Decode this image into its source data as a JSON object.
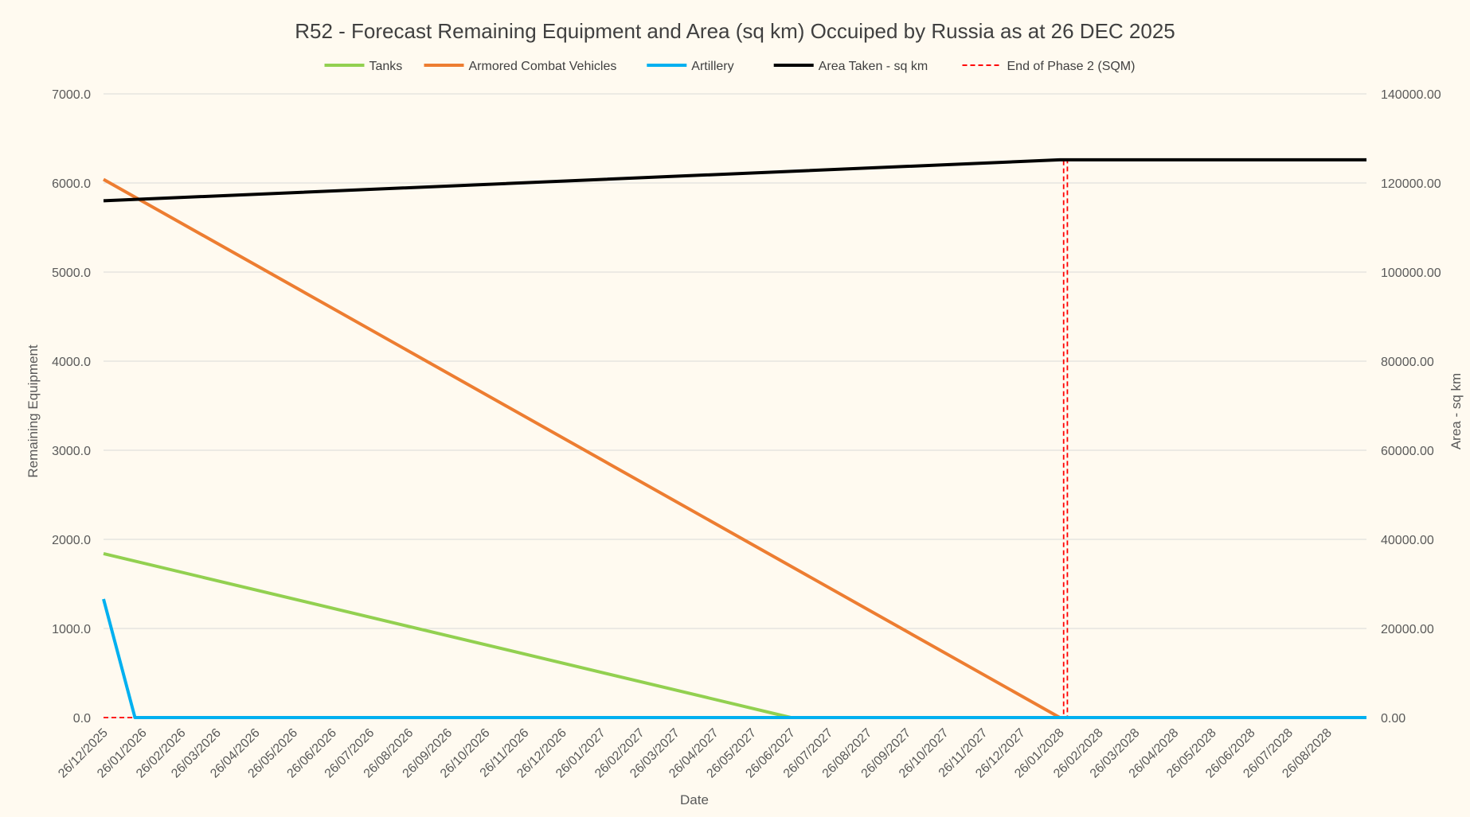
{
  "chart_data": {
    "type": "line",
    "title": "R52 - Forecast Remaining Equipment and Area (sq km) Occuiped by Russia as at 26 DEC 2025",
    "xlabel": "Date",
    "ylabel": "Remaining Equipment",
    "y2label": "Area - sq km",
    "ylim": [
      0,
      7000
    ],
    "y2lim": [
      0,
      140000
    ],
    "yticks": [
      "0.0",
      "1000.0",
      "2000.0",
      "3000.0",
      "4000.0",
      "5000.0",
      "6000.0",
      "7000.0"
    ],
    "y2ticks": [
      "0.00",
      "20000.00",
      "40000.00",
      "60000.00",
      "80000.00",
      "100000.00",
      "120000.00",
      "140000.00"
    ],
    "categories": [
      "26/12/2025",
      "26/01/2026",
      "26/02/2026",
      "26/03/2026",
      "26/04/2026",
      "26/05/2026",
      "26/06/2026",
      "26/07/2026",
      "26/08/2026",
      "26/09/2026",
      "26/10/2026",
      "26/11/2026",
      "26/12/2026",
      "26/01/2027",
      "26/02/2027",
      "26/03/2027",
      "26/04/2027",
      "26/05/2027",
      "26/06/2027",
      "26/07/2027",
      "26/08/2027",
      "26/09/2027",
      "26/10/2027",
      "26/11/2027",
      "26/12/2027",
      "26/01/2028",
      "26/02/2028",
      "26/03/2028",
      "26/04/2028",
      "26/05/2028",
      "26/06/2028",
      "26/07/2028",
      "26/08/2028"
    ],
    "x_end": "26/09/2028",
    "legend_position": "top",
    "grid": true,
    "series": [
      {
        "name": "Tanks",
        "axis": "left",
        "color": "#92d050",
        "dash": false,
        "points": [
          [
            "26/12/2025",
            1840
          ],
          [
            "26/06/2027",
            0
          ],
          [
            "26/09/2028",
            0
          ]
        ]
      },
      {
        "name": "Armored Combat Vehicles",
        "axis": "left",
        "color": "#ed7d31",
        "dash": false,
        "points": [
          [
            "26/12/2025",
            6040
          ],
          [
            "26/01/2028",
            0
          ],
          [
            "26/09/2028",
            0
          ]
        ]
      },
      {
        "name": "Artillery",
        "axis": "left",
        "color": "#00b0f0",
        "dash": false,
        "points": [
          [
            "26/12/2025",
            1330
          ],
          [
            "20/01/2026",
            0
          ],
          [
            "26/09/2028",
            0
          ]
        ]
      },
      {
        "name": "Area Taken - sq km",
        "axis": "right",
        "color": "#000000",
        "dash": false,
        "points": [
          [
            "26/12/2025",
            116000
          ],
          [
            "26/01/2028",
            125200
          ],
          [
            "26/09/2028",
            125200
          ]
        ]
      },
      {
        "name": "End of Phase 2 (SQM)",
        "axis": "right",
        "color": "#ff0000",
        "dash": true,
        "points": [
          [
            "26/12/2025",
            0
          ],
          [
            "29/01/2028",
            0
          ],
          [
            "29/01/2028",
            125200
          ],
          [
            "01/02/2028",
            125200
          ],
          [
            "01/02/2028",
            0
          ],
          [
            "26/09/2028",
            0
          ]
        ]
      }
    ]
  }
}
